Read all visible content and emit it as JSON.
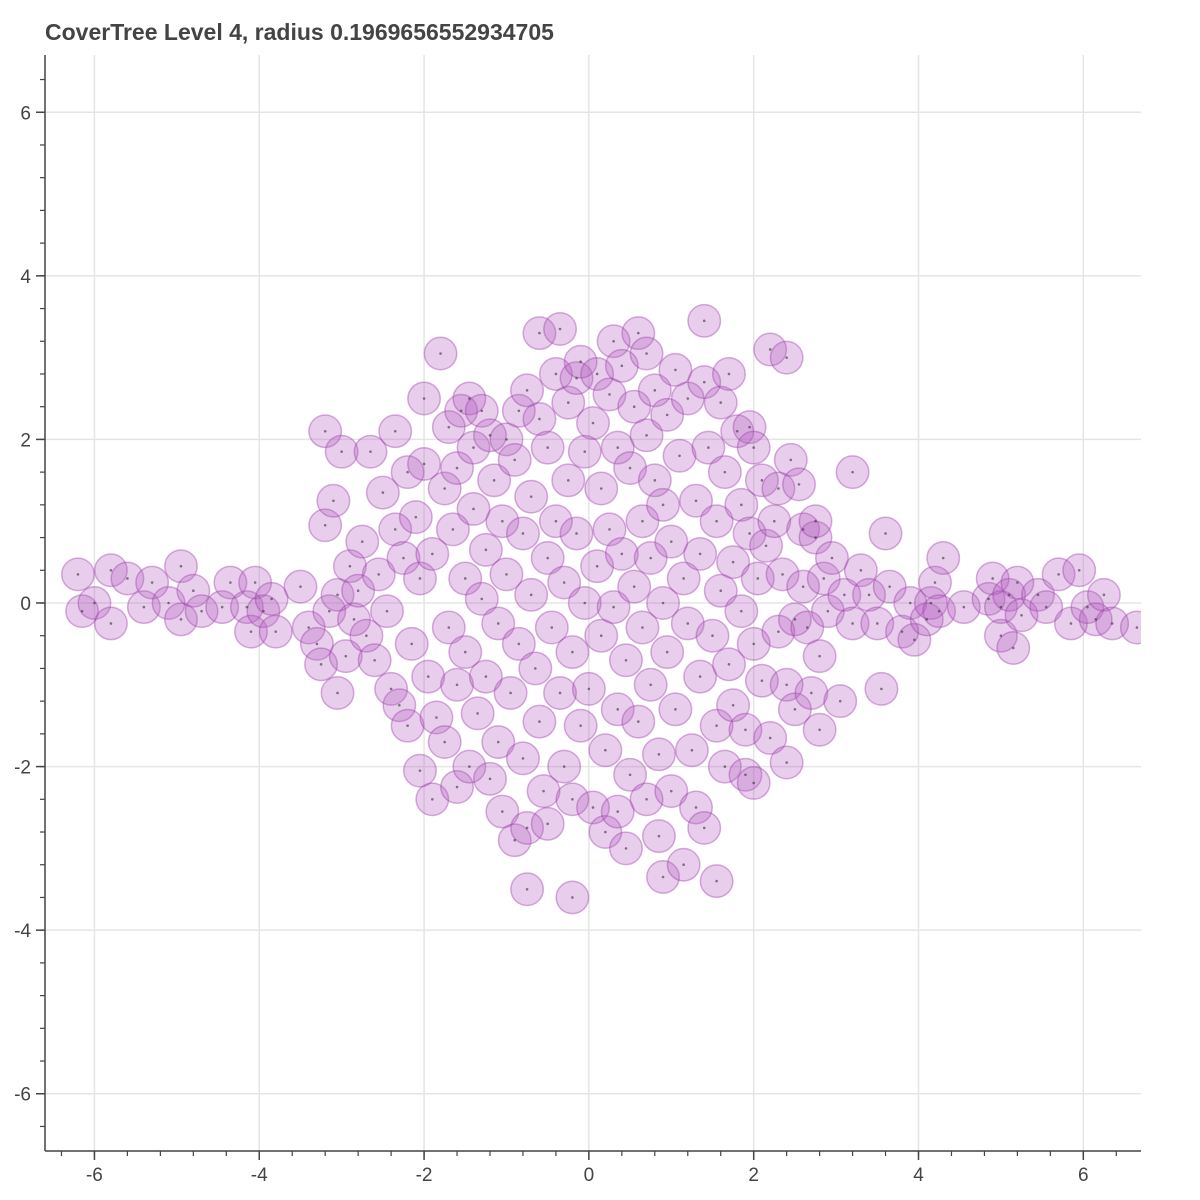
{
  "chart_data": {
    "type": "scatter",
    "title": "CoverTree Level 4, radius 0.1969656552934705",
    "xlabel": "",
    "ylabel": "",
    "xlim": [
      -6.6,
      6.7
    ],
    "ylim": [
      -6.7,
      6.7
    ],
    "grid": true,
    "radius": 0.1969656552934705,
    "x_ticks": [
      -6,
      -4,
      -2,
      0,
      2,
      4,
      6
    ],
    "y_ticks": [
      -6,
      -4,
      -2,
      0,
      2,
      4,
      6
    ],
    "x_tick_labels": [
      "-6",
      "-4",
      "-2",
      "0",
      "2",
      "4",
      "6"
    ],
    "y_tick_labels": [
      "-6",
      "-4",
      "-2",
      "0",
      "2",
      "4",
      "6"
    ],
    "colors": {
      "circle_fill": "#b25cbf",
      "circle_stroke": "#9b3aa8",
      "point": "#333333",
      "grid": "#e5e5e5",
      "axis": "#444444"
    },
    "circles": [
      [
        -6.2,
        0.35
      ],
      [
        -6.15,
        -0.1
      ],
      [
        -6.0,
        0.0
      ],
      [
        -5.8,
        0.4
      ],
      [
        -5.8,
        -0.25
      ],
      [
        -5.6,
        0.3
      ],
      [
        -5.4,
        -0.05
      ],
      [
        -5.3,
        0.25
      ],
      [
        -5.1,
        0.0
      ],
      [
        -4.95,
        0.45
      ],
      [
        -4.95,
        -0.2
      ],
      [
        -4.8,
        0.15
      ],
      [
        -4.7,
        -0.1
      ],
      [
        -4.45,
        -0.05
      ],
      [
        -4.35,
        0.25
      ],
      [
        -4.15,
        -0.05
      ],
      [
        -4.1,
        -0.35
      ],
      [
        -4.05,
        0.25
      ],
      [
        -3.95,
        -0.1
      ],
      [
        -3.85,
        0.05
      ],
      [
        -3.8,
        -0.35
      ],
      [
        -3.5,
        0.2
      ],
      [
        -3.4,
        -0.3
      ],
      [
        -3.3,
        -0.5
      ],
      [
        -3.25,
        -0.75
      ],
      [
        -3.2,
        0.95
      ],
      [
        -3.2,
        2.1
      ],
      [
        -3.15,
        -0.1
      ],
      [
        -3.1,
        1.25
      ],
      [
        -3.05,
        -1.1
      ],
      [
        -3.05,
        0.1
      ],
      [
        -3.0,
        1.85
      ],
      [
        -2.95,
        -0.65
      ],
      [
        -2.9,
        0.45
      ],
      [
        -2.85,
        -0.2
      ],
      [
        -2.8,
        0.15
      ],
      [
        -2.75,
        0.75
      ],
      [
        -2.7,
        -0.4
      ],
      [
        -2.65,
        1.85
      ],
      [
        -2.6,
        -0.7
      ],
      [
        -2.55,
        0.35
      ],
      [
        -2.5,
        1.35
      ],
      [
        -2.45,
        -0.1
      ],
      [
        -2.4,
        -1.05
      ],
      [
        -2.35,
        0.9
      ],
      [
        -2.35,
        2.1
      ],
      [
        -2.3,
        -1.25
      ],
      [
        -2.25,
        0.55
      ],
      [
        -2.2,
        1.6
      ],
      [
        -2.15,
        -0.5
      ],
      [
        -2.1,
        1.05
      ],
      [
        -2.05,
        0.3
      ],
      [
        -2.2,
        -1.5
      ],
      [
        -2.0,
        1.7
      ],
      [
        -2.05,
        -2.05
      ],
      [
        -2.0,
        2.5
      ],
      [
        -1.95,
        -0.9
      ],
      [
        -1.9,
        0.6
      ],
      [
        -1.9,
        -2.4
      ],
      [
        -1.85,
        -1.4
      ],
      [
        -1.8,
        3.05
      ],
      [
        -1.75,
        1.4
      ],
      [
        -1.75,
        -1.7
      ],
      [
        -1.7,
        2.15
      ],
      [
        -1.7,
        -0.3
      ],
      [
        -1.65,
        0.9
      ],
      [
        -1.6,
        -1.0
      ],
      [
        -1.6,
        1.65
      ],
      [
        -1.6,
        -2.25
      ],
      [
        -1.55,
        2.35
      ],
      [
        -1.5,
        0.3
      ],
      [
        -1.5,
        -0.6
      ],
      [
        -1.45,
        2.5
      ],
      [
        -1.45,
        -2.0
      ],
      [
        -1.4,
        1.15
      ],
      [
        -1.4,
        1.9
      ],
      [
        -1.35,
        -1.35
      ],
      [
        -1.3,
        0.05
      ],
      [
        -1.3,
        2.35
      ],
      [
        -1.25,
        -0.9
      ],
      [
        -1.25,
        0.65
      ],
      [
        -1.2,
        2.05
      ],
      [
        -1.2,
        -2.15
      ],
      [
        -1.15,
        1.5
      ],
      [
        -1.1,
        -0.25
      ],
      [
        -1.1,
        -1.7
      ],
      [
        -1.05,
        1.0
      ],
      [
        -1.05,
        -2.55
      ],
      [
        -1.0,
        2.0
      ],
      [
        -1.0,
        0.35
      ],
      [
        -0.95,
        -1.1
      ],
      [
        -0.9,
        -2.9
      ],
      [
        -0.9,
        1.75
      ],
      [
        -0.85,
        -0.5
      ],
      [
        -0.85,
        2.35
      ],
      [
        -0.8,
        0.85
      ],
      [
        -0.8,
        -1.9
      ],
      [
        -0.75,
        2.6
      ],
      [
        -0.75,
        -2.75
      ],
      [
        -0.75,
        -3.5
      ],
      [
        -0.7,
        0.1
      ],
      [
        -0.7,
        1.3
      ],
      [
        -0.65,
        -0.8
      ],
      [
        -0.6,
        2.25
      ],
      [
        -0.6,
        -1.45
      ],
      [
        -0.6,
        3.3
      ],
      [
        -0.55,
        -2.3
      ],
      [
        -0.5,
        0.55
      ],
      [
        -0.5,
        1.9
      ],
      [
        -0.5,
        -2.7
      ],
      [
        -0.45,
        -0.3
      ],
      [
        -0.4,
        2.8
      ],
      [
        -0.4,
        1.0
      ],
      [
        -0.35,
        -1.1
      ],
      [
        -0.35,
        3.35
      ],
      [
        -0.3,
        0.25
      ],
      [
        -0.3,
        -2.0
      ],
      [
        -0.25,
        2.45
      ],
      [
        -0.25,
        1.5
      ],
      [
        -0.2,
        -0.6
      ],
      [
        -0.2,
        -2.4
      ],
      [
        -0.2,
        -3.6
      ],
      [
        -0.15,
        2.75
      ],
      [
        -0.15,
        0.85
      ],
      [
        -0.1,
        -1.5
      ],
      [
        -0.1,
        2.95
      ],
      [
        -0.05,
        0.0
      ],
      [
        -0.05,
        1.85
      ],
      [
        0.0,
        -1.05
      ],
      [
        0.05,
        2.2
      ],
      [
        0.05,
        -2.5
      ],
      [
        0.1,
        0.45
      ],
      [
        0.1,
        2.8
      ],
      [
        0.15,
        -0.4
      ],
      [
        0.15,
        1.4
      ],
      [
        0.2,
        -1.8
      ],
      [
        0.2,
        -2.8
      ],
      [
        0.25,
        0.9
      ],
      [
        0.25,
        2.55
      ],
      [
        0.3,
        -0.05
      ],
      [
        0.3,
        3.2
      ],
      [
        0.35,
        -1.3
      ],
      [
        0.35,
        1.9
      ],
      [
        0.35,
        -2.55
      ],
      [
        0.4,
        0.6
      ],
      [
        0.4,
        2.9
      ],
      [
        0.45,
        -0.7
      ],
      [
        0.45,
        -3.0
      ],
      [
        0.5,
        1.65
      ],
      [
        0.5,
        -2.1
      ],
      [
        0.55,
        0.2
      ],
      [
        0.55,
        2.4
      ],
      [
        0.6,
        -1.45
      ],
      [
        0.6,
        3.3
      ],
      [
        0.65,
        1.0
      ],
      [
        0.65,
        -0.3
      ],
      [
        0.7,
        2.05
      ],
      [
        0.7,
        -2.4
      ],
      [
        0.7,
        3.05
      ],
      [
        0.75,
        0.55
      ],
      [
        0.75,
        -1.0
      ],
      [
        0.8,
        1.5
      ],
      [
        0.8,
        2.6
      ],
      [
        0.85,
        -1.85
      ],
      [
        0.85,
        -2.85
      ],
      [
        0.9,
        0.0
      ],
      [
        0.9,
        1.2
      ],
      [
        0.9,
        -3.35
      ],
      [
        0.95,
        -0.6
      ],
      [
        0.95,
        2.3
      ],
      [
        1.0,
        -2.3
      ],
      [
        1.0,
        0.75
      ],
      [
        1.05,
        2.85
      ],
      [
        1.05,
        -1.3
      ],
      [
        1.1,
        1.8
      ],
      [
        1.15,
        -3.2
      ],
      [
        1.15,
        0.3
      ],
      [
        1.2,
        -0.25
      ],
      [
        1.2,
        2.5
      ],
      [
        1.25,
        -1.8
      ],
      [
        1.3,
        1.25
      ],
      [
        1.3,
        -2.5
      ],
      [
        1.35,
        0.6
      ],
      [
        1.35,
        -0.9
      ],
      [
        1.4,
        3.45
      ],
      [
        1.4,
        2.7
      ],
      [
        1.4,
        -2.75
      ],
      [
        1.45,
        1.9
      ],
      [
        1.5,
        -0.4
      ],
      [
        1.55,
        -1.5
      ],
      [
        1.55,
        1.0
      ],
      [
        1.55,
        -3.4
      ],
      [
        1.6,
        0.15
      ],
      [
        1.6,
        2.45
      ],
      [
        1.65,
        -2.0
      ],
      [
        1.65,
        1.6
      ],
      [
        1.7,
        -0.75
      ],
      [
        1.7,
        2.8
      ],
      [
        1.75,
        0.5
      ],
      [
        1.75,
        -1.25
      ],
      [
        1.8,
        2.1
      ],
      [
        1.85,
        -0.1
      ],
      [
        1.85,
        1.2
      ],
      [
        1.9,
        -1.55
      ],
      [
        1.9,
        -2.1
      ],
      [
        1.95,
        0.85
      ],
      [
        1.95,
        2.15
      ],
      [
        2.0,
        -0.5
      ],
      [
        2.0,
        1.9
      ],
      [
        2.0,
        -2.2
      ],
      [
        2.05,
        0.3
      ],
      [
        2.1,
        -0.95
      ],
      [
        2.1,
        1.5
      ],
      [
        2.15,
        0.7
      ],
      [
        2.2,
        -1.65
      ],
      [
        2.2,
        3.1
      ],
      [
        2.25,
        1.0
      ],
      [
        2.3,
        -0.35
      ],
      [
        2.3,
        1.4
      ],
      [
        2.35,
        0.35
      ],
      [
        2.4,
        -1.0
      ],
      [
        2.4,
        -1.95
      ],
      [
        2.4,
        3.0
      ],
      [
        2.45,
        1.75
      ],
      [
        2.5,
        -0.2
      ],
      [
        2.5,
        -1.3
      ],
      [
        2.55,
        1.45
      ],
      [
        2.6,
        0.2
      ],
      [
        2.6,
        0.9
      ],
      [
        2.65,
        -0.3
      ],
      [
        2.7,
        -1.1
      ],
      [
        2.75,
        0.8
      ],
      [
        2.75,
        1.0
      ],
      [
        2.8,
        -0.65
      ],
      [
        2.8,
        -1.55
      ],
      [
        2.85,
        0.3
      ],
      [
        2.9,
        -0.1
      ],
      [
        2.95,
        0.55
      ],
      [
        3.05,
        -1.2
      ],
      [
        3.1,
        0.1
      ],
      [
        3.2,
        -0.25
      ],
      [
        3.2,
        1.6
      ],
      [
        3.3,
        0.4
      ],
      [
        3.4,
        0.1
      ],
      [
        3.5,
        -0.25
      ],
      [
        3.55,
        -1.05
      ],
      [
        3.6,
        0.85
      ],
      [
        3.65,
        0.2
      ],
      [
        3.8,
        -0.35
      ],
      [
        3.9,
        0.0
      ],
      [
        3.95,
        -0.45
      ],
      [
        4.1,
        -0.2
      ],
      [
        4.15,
        0.0
      ],
      [
        4.2,
        0.25
      ],
      [
        4.25,
        -0.1
      ],
      [
        4.3,
        0.55
      ],
      [
        4.55,
        -0.05
      ],
      [
        4.85,
        0.05
      ],
      [
        4.9,
        0.3
      ],
      [
        5.0,
        -0.05
      ],
      [
        5.0,
        -0.4
      ],
      [
        5.1,
        0.1
      ],
      [
        5.15,
        -0.55
      ],
      [
        5.2,
        0.25
      ],
      [
        5.25,
        -0.15
      ],
      [
        5.45,
        0.1
      ],
      [
        5.55,
        -0.05
      ],
      [
        5.7,
        0.35
      ],
      [
        5.85,
        -0.25
      ],
      [
        5.95,
        0.4
      ],
      [
        6.05,
        -0.05
      ],
      [
        6.15,
        -0.2
      ],
      [
        6.25,
        0.1
      ],
      [
        6.35,
        -0.25
      ],
      [
        6.65,
        -0.3
      ]
    ]
  }
}
